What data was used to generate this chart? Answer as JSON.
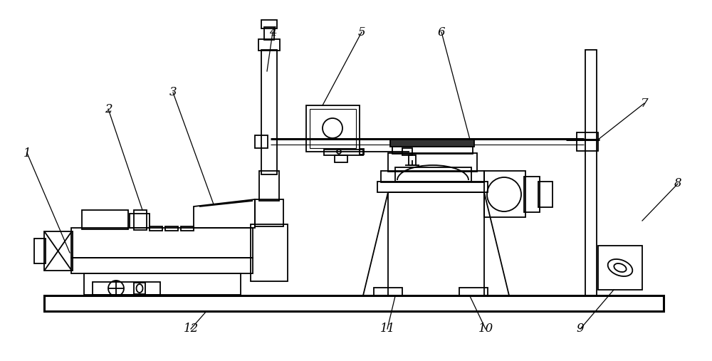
{
  "bg": "#ffffff",
  "lc": "#000000",
  "lw": 1.3,
  "lw2": 2.2,
  "lwt": 0.8,
  "fig_w": 10.0,
  "fig_h": 5.07,
  "dpi": 100
}
